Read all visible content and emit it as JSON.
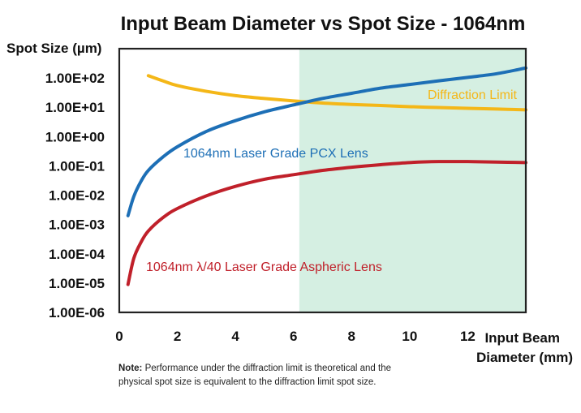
{
  "chart_data": {
    "type": "line",
    "title": "Input Beam Diameter vs Spot Size - 1064nm",
    "ylabel": "Spot Size (µm)",
    "xlabel_line1": "Input Beam",
    "xlabel_line2": "Diameter (mm)",
    "y_scale": "log",
    "xlim": [
      0,
      14
    ],
    "ylim": [
      1e-06,
      1000
    ],
    "x_ticks": [
      "0",
      "2",
      "4",
      "6",
      "8",
      "10",
      "12"
    ],
    "y_ticks": [
      "1.00E-06",
      "1.00E-05",
      "1.00E-04",
      "1.00E-03",
      "1.00E-02",
      "1.00E-01",
      "1.00E+00",
      "1.00E+01",
      "1.00E+02"
    ],
    "shaded_region": {
      "x_from": 6.2,
      "x_to": 14,
      "color": "#d5efe2"
    },
    "grid": false,
    "series": [
      {
        "name": "Diffraction Limit",
        "color": "#f4b718",
        "x": [
          1.0,
          1.5,
          2,
          3,
          4,
          5,
          6,
          7,
          8,
          9,
          10,
          11,
          12,
          13,
          14
        ],
        "y": [
          120,
          80,
          55,
          35,
          25,
          20,
          16.5,
          14,
          12.5,
          11.5,
          10.5,
          9.8,
          9.2,
          8.7,
          8.2
        ]
      },
      {
        "name": "1064nm Laser Grade PCX Lens",
        "color": "#1d6fb6",
        "x": [
          0.3,
          0.5,
          0.75,
          1,
          1.5,
          2,
          3,
          4,
          5,
          6,
          7,
          8,
          9,
          10,
          11,
          12,
          13,
          14
        ],
        "y": [
          0.002,
          0.009,
          0.03,
          0.07,
          0.2,
          0.45,
          1.5,
          3.5,
          7,
          12,
          20,
          30,
          45,
          60,
          80,
          105,
          140,
          220
        ]
      },
      {
        "name": "1064nm λ/40 Laser Grade Aspheric Lens",
        "color": "#c0202a",
        "x": [
          0.3,
          0.5,
          0.75,
          1,
          1.5,
          2,
          3,
          4,
          5,
          6,
          7,
          8,
          9,
          10,
          11,
          12,
          13,
          14
        ],
        "y": [
          9e-06,
          7e-05,
          0.00025,
          0.0006,
          0.0017,
          0.0035,
          0.0095,
          0.02,
          0.035,
          0.05,
          0.07,
          0.09,
          0.11,
          0.13,
          0.14,
          0.14,
          0.135,
          0.13
        ]
      }
    ]
  },
  "note": {
    "prefix": "Note:",
    "text": " Performance under the diffraction limit is theoretical and the physical spot size is equivalent to the diffraction limit spot size."
  }
}
